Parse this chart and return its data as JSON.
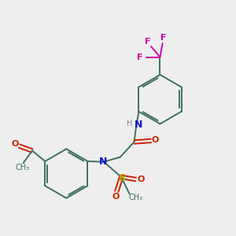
{
  "bg_color": "#eeeeee",
  "bond_color": "#3d7060",
  "N_color": "#1010cc",
  "O_color": "#cc2200",
  "S_color": "#bbaa00",
  "F_color": "#cc00aa",
  "H_color": "#888888",
  "lw": 1.4,
  "figsize": [
    3.0,
    3.0
  ],
  "dpi": 100,
  "xlim": [
    0,
    10
  ],
  "ylim": [
    0,
    10
  ]
}
